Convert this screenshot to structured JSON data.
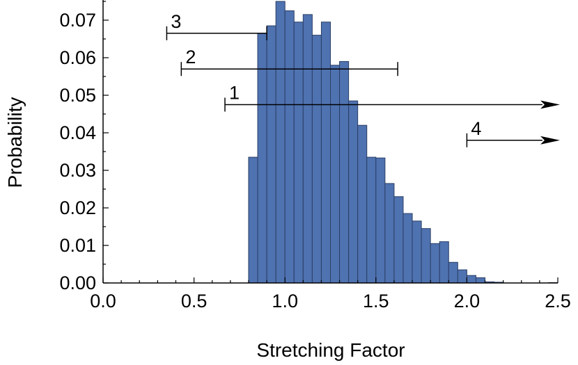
{
  "chart_data": {
    "type": "bar",
    "xlabel": "Stretching Factor",
    "ylabel": "Probability",
    "xlim": [
      0.0,
      2.5
    ],
    "ylim": [
      0.0,
      0.075
    ],
    "bin_width": 0.05,
    "x_ticks": [
      "0.0",
      "0.5",
      "1.0",
      "1.5",
      "2.0",
      "2.5"
    ],
    "y_ticks": [
      "0.00",
      "0.01",
      "0.02",
      "0.03",
      "0.04",
      "0.05",
      "0.06",
      "0.07"
    ],
    "bins": [
      {
        "x": 0.8,
        "y": 0.0335
      },
      {
        "x": 0.85,
        "y": 0.0665
      },
      {
        "x": 0.9,
        "y": 0.0685
      },
      {
        "x": 0.95,
        "y": 0.075
      },
      {
        "x": 1.0,
        "y": 0.0725
      },
      {
        "x": 1.05,
        "y": 0.0695
      },
      {
        "x": 1.1,
        "y": 0.0715
      },
      {
        "x": 1.15,
        "y": 0.066
      },
      {
        "x": 1.2,
        "y": 0.0695
      },
      {
        "x": 1.25,
        "y": 0.058
      },
      {
        "x": 1.3,
        "y": 0.059
      },
      {
        "x": 1.35,
        "y": 0.0485
      },
      {
        "x": 1.4,
        "y": 0.042
      },
      {
        "x": 1.45,
        "y": 0.0335
      },
      {
        "x": 1.5,
        "y": 0.0333
      },
      {
        "x": 1.55,
        "y": 0.0265
      },
      {
        "x": 1.6,
        "y": 0.023
      },
      {
        "x": 1.65,
        "y": 0.0185
      },
      {
        "x": 1.7,
        "y": 0.0165
      },
      {
        "x": 1.75,
        "y": 0.0145
      },
      {
        "x": 1.8,
        "y": 0.0105
      },
      {
        "x": 1.85,
        "y": 0.011
      },
      {
        "x": 1.9,
        "y": 0.0055
      },
      {
        "x": 1.95,
        "y": 0.0035
      },
      {
        "x": 2.0,
        "y": 0.002
      },
      {
        "x": 2.05,
        "y": 0.0014
      },
      {
        "x": 2.1,
        "y": 0.0003
      },
      {
        "x": 2.15,
        "y": 0.0002
      },
      {
        "x": 2.45,
        "y": 0.0001
      }
    ],
    "ranges": [
      {
        "label": "3",
        "x_start": 0.35,
        "x_end": 0.9,
        "y": 0.0665,
        "arrow": false
      },
      {
        "label": "2",
        "x_start": 0.43,
        "x_end": 1.62,
        "y": 0.057,
        "arrow": false
      },
      {
        "label": "1",
        "x_start": 0.67,
        "x_end": 2.5,
        "y": 0.0475,
        "arrow": true
      },
      {
        "label": "4",
        "x_start": 2.0,
        "x_end": 2.5,
        "y": 0.038,
        "arrow": true
      }
    ],
    "colors": {
      "bar_fill": "#4f72b0",
      "bar_stroke": "#2b3f66",
      "axis": "#000000"
    }
  }
}
